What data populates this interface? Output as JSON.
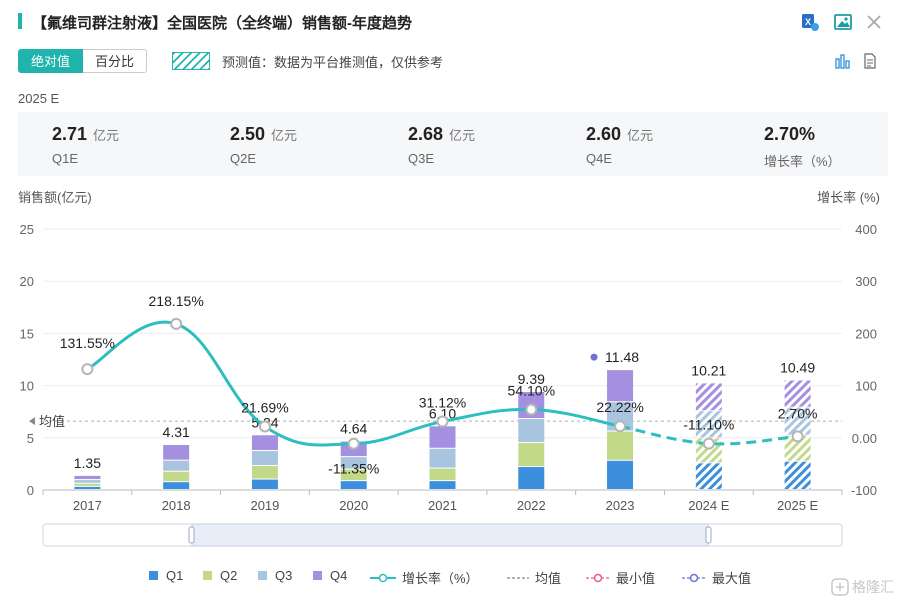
{
  "header": {
    "title": "【氟维司群注射液】全国医院（全终端）销售额-年度趋势"
  },
  "tabs": [
    {
      "label": "绝对值",
      "active": true
    },
    {
      "label": "百分比",
      "active": false
    }
  ],
  "forecast_note": "预测值：数据为平台推测值，仅供参考",
  "year_label": "2025 E",
  "summary": [
    {
      "value": "2.71",
      "unit": "亿元",
      "label": "Q1E"
    },
    {
      "value": "2.50",
      "unit": "亿元",
      "label": "Q2E"
    },
    {
      "value": "2.68",
      "unit": "亿元",
      "label": "Q3E"
    },
    {
      "value": "2.60",
      "unit": "亿元",
      "label": "Q4E"
    },
    {
      "value": "2.70%",
      "unit": "",
      "label": "增长率（%）"
    }
  ],
  "legend": {
    "q1": "Q1",
    "q2": "Q2",
    "q3": "Q3",
    "q4": "Q4",
    "growth": "增长率（%）",
    "avg": "均值",
    "min": "最小值",
    "max": "最大值"
  },
  "watermark": "格隆汇",
  "icons": [
    "excel-export-icon",
    "image-export-icon",
    "close-icon",
    "bar-chart-icon",
    "table-icon"
  ],
  "colors": {
    "accent": "#1fb5ad",
    "q1": "#3b8fdc",
    "q2": "#c3d98a",
    "q3": "#a8c4df",
    "q4": "#a58fe0",
    "growth_line": "#2cbfc0",
    "min": "#e8588f",
    "max": "#6f6fd8"
  },
  "chart_data": {
    "type": "bar",
    "stacked": true,
    "ylabel": "销售额(亿元)",
    "y2label": "增长率 (%)",
    "ylim": [
      0,
      25
    ],
    "yticks": [
      0,
      5,
      10,
      15,
      20,
      25
    ],
    "y2lim": [
      -100,
      400
    ],
    "y2ticks": [
      -100,
      0,
      100,
      200,
      300,
      400
    ],
    "y2tick_labels": [
      "-100",
      "0.00",
      "100",
      "200",
      "300",
      "400"
    ],
    "categories": [
      "2017",
      "2018",
      "2019",
      "2020",
      "2021",
      "2022",
      "2023",
      "2024 E",
      "2025 E"
    ],
    "forecast": [
      false,
      false,
      false,
      false,
      false,
      false,
      false,
      true,
      true
    ],
    "series": [
      {
        "name": "Q1",
        "values": [
          0.3,
          0.75,
          1.0,
          0.85,
          0.85,
          2.2,
          2.8,
          2.55,
          2.71
        ]
      },
      {
        "name": "Q2",
        "values": [
          0.3,
          1.0,
          1.3,
          1.1,
          1.2,
          2.3,
          2.8,
          2.4,
          2.5
        ]
      },
      {
        "name": "Q3",
        "values": [
          0.35,
          1.06,
          1.44,
          1.2,
          1.9,
          2.3,
          2.8,
          2.6,
          2.68
        ]
      },
      {
        "name": "Q4",
        "values": [
          0.4,
          1.5,
          1.5,
          1.49,
          2.15,
          2.59,
          3.08,
          2.66,
          2.6
        ]
      }
    ],
    "totals": [
      1.35,
      4.31,
      5.24,
      4.64,
      6.1,
      9.39,
      11.48,
      10.21,
      10.49
    ],
    "total_labels": [
      "1.35",
      "4.31",
      "5.24",
      "4.64",
      "6.10",
      "9.39",
      "11.48",
      "10.21",
      "10.49"
    ],
    "growth": [
      131.55,
      218.15,
      21.69,
      -11.35,
      31.12,
      54.1,
      22.22,
      -11.1,
      2.7
    ],
    "growth_labels": [
      "131.55%",
      "218.15%",
      "21.69%",
      "-11.35%",
      "31.12%",
      "54.10%",
      "22.22%",
      "-11.10%",
      "2.70%"
    ],
    "average": 6.6,
    "average_label": "均值",
    "max_index": 6
  }
}
